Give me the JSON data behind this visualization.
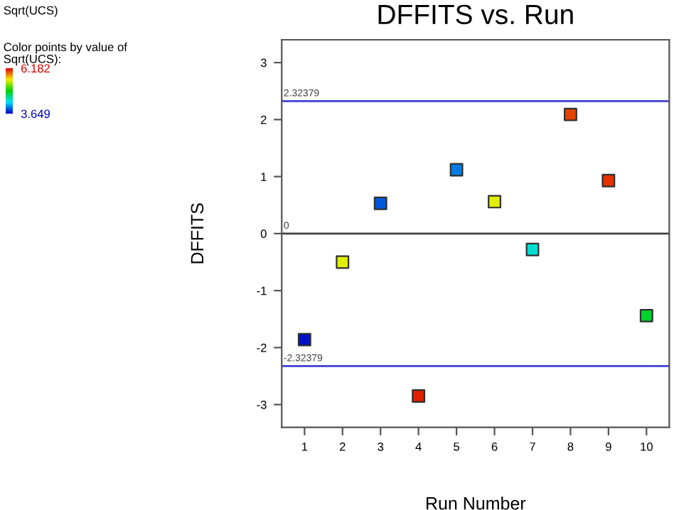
{
  "chart_data": {
    "type": "scatter",
    "title": "DFFITS vs. Run",
    "xlabel": "Run Number",
    "ylabel": "DFFITS",
    "clabel": "Color points by value of\nSqrt(UCS):",
    "annotations": [
      "Sqrt(UCS)"
    ],
    "x": [
      1,
      2,
      3,
      4,
      5,
      6,
      7,
      8,
      9,
      10
    ],
    "values": [
      -1.86,
      -0.5,
      0.53,
      -2.85,
      1.12,
      0.56,
      -0.28,
      2.09,
      0.93,
      -1.44
    ],
    "cvalues": [
      3.7,
      5.5,
      3.9,
      6.1,
      4.0,
      5.5,
      4.4,
      6.0,
      6.05,
      4.8
    ],
    "clim": [
      3.649,
      6.182
    ],
    "cticks": [
      3.649,
      6.182
    ],
    "marker": "square",
    "ref_lines": [
      {
        "axis": "y",
        "value": 2.32379,
        "label": "2.32379",
        "color": "#4040d0"
      },
      {
        "axis": "y",
        "value": 0,
        "label": "0",
        "color": "#404040"
      },
      {
        "axis": "y",
        "value": -2.32379,
        "label": "-2.32379",
        "color": "#4040d0"
      }
    ],
    "xlim": [
      0.4,
      10.6
    ],
    "ylim": [
      -3.4,
      3.4
    ],
    "xticks": [
      1,
      2,
      3,
      4,
      5,
      6,
      7,
      8,
      9,
      10
    ],
    "yticks": [
      -3,
      -2,
      -1,
      0,
      1,
      2,
      3
    ],
    "grid": false
  }
}
